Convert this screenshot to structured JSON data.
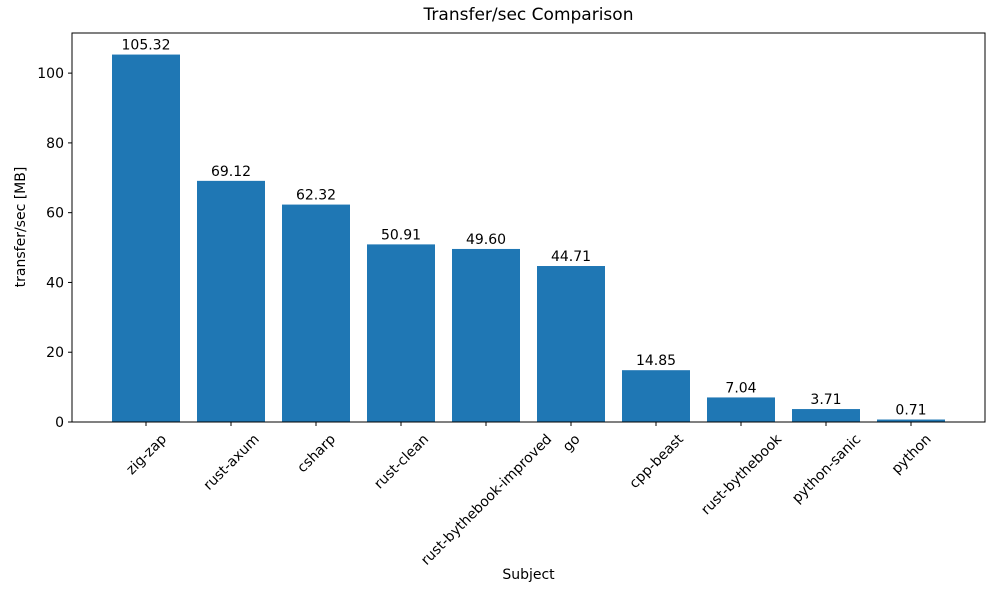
{
  "chart_data": {
    "type": "bar",
    "title": "Transfer/sec Comparison",
    "xlabel": "Subject",
    "ylabel": "transfer/sec [MB]",
    "categories": [
      "zig-zap",
      "rust-axum",
      "csharp",
      "rust-clean",
      "rust-bythebook-improved",
      "go",
      "cpp-beast",
      "rust-bythebook",
      "python-sanic",
      "python"
    ],
    "values": [
      105.32,
      69.12,
      62.32,
      50.91,
      49.6,
      44.71,
      14.85,
      7.04,
      3.71,
      0.71
    ],
    "bar_labels": [
      "105.32",
      "69.12",
      "62.32",
      "50.91",
      "49.60",
      "44.71",
      "14.85",
      "7.04",
      "3.71",
      "0.71"
    ],
    "bar_color": "#1f77b4",
    "axis_color": "#000000",
    "ylim": [
      0,
      111.5
    ],
    "yticks": [
      "0",
      "20",
      "40",
      "60",
      "80",
      "100"
    ],
    "grid": false,
    "legend": "none",
    "x_tick_rotation_deg": 45
  }
}
